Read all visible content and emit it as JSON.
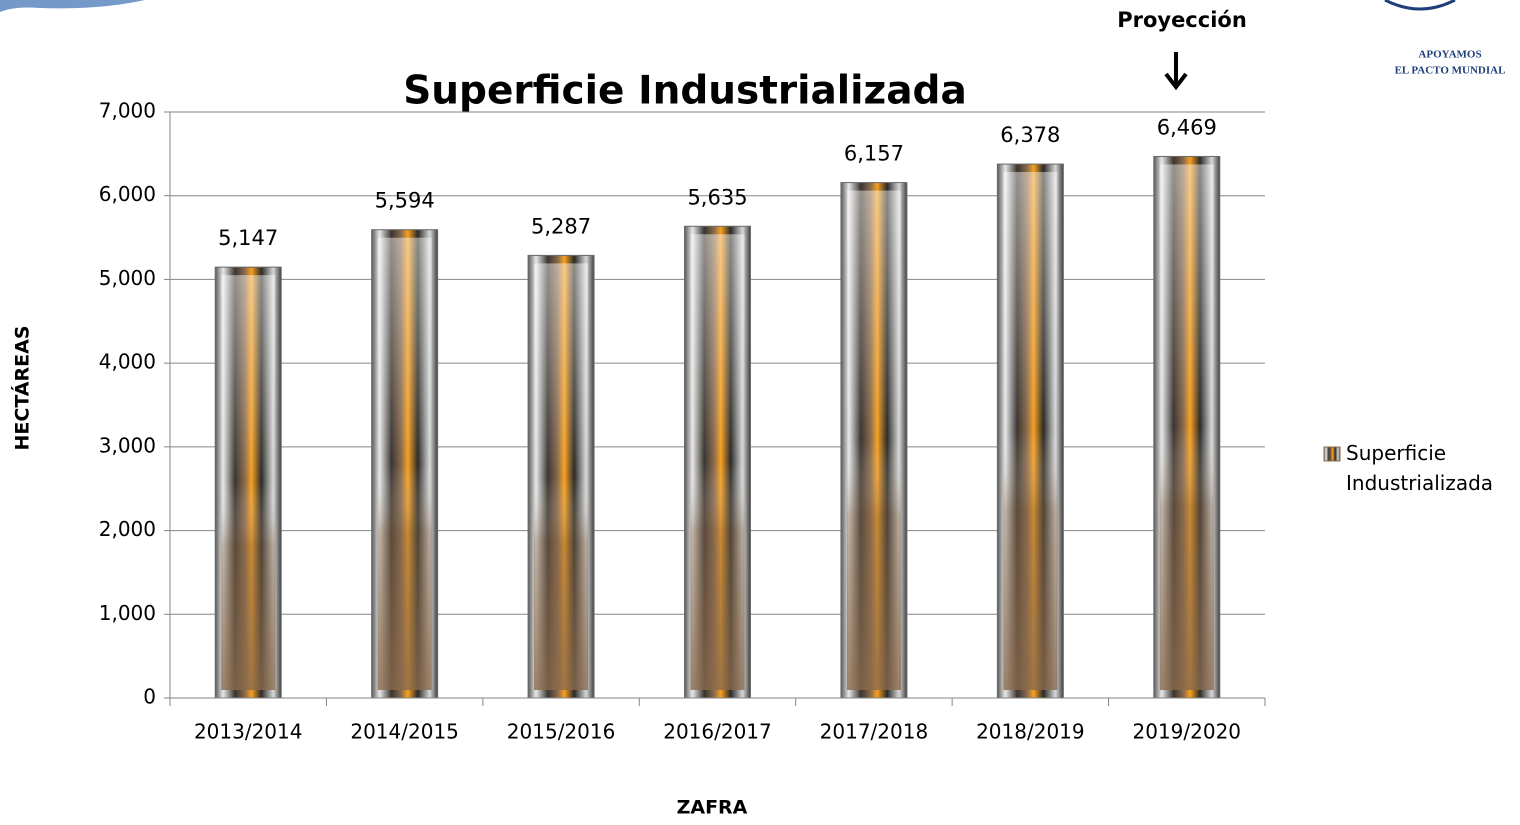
{
  "chart_data": {
    "type": "bar",
    "title": "Superficie Industrializada",
    "x_label": "ZAFRA",
    "y_label": "HECTÁREAS",
    "annotation": "Proyección",
    "categories": [
      "2013/2014",
      "2014/2015",
      "2015/2016",
      "2016/2017",
      "2017/2018",
      "2018/2019",
      "2019/2020"
    ],
    "series": [
      {
        "name": "Superficie Industrializada",
        "color": "#8a6a4c",
        "values": [
          5147,
          5594,
          5287,
          5635,
          6157,
          6378,
          6469
        ],
        "value_labels": [
          "5,147",
          "5,594",
          "5,287",
          "5,635",
          "6,157",
          "6,378",
          "6,469"
        ]
      }
    ],
    "ylim": [
      0,
      7000
    ],
    "yticks": [
      0,
      {
        "value": 1000,
        "label": "1,000"
      },
      {
        "value": 2000,
        "label": "2,000"
      },
      {
        "value": 3000,
        "label": "3,000"
      },
      {
        "value": 4000,
        "label": "4,000"
      },
      {
        "value": 5000,
        "label": "5,000"
      },
      {
        "value": 6000,
        "label": "6,000"
      },
      {
        "value": 7000,
        "label": "7,000"
      }
    ],
    "grid": true,
    "legend": "right"
  },
  "logo_text": [
    "APOYAMOS",
    "EL PACTO MUNDIAL"
  ]
}
